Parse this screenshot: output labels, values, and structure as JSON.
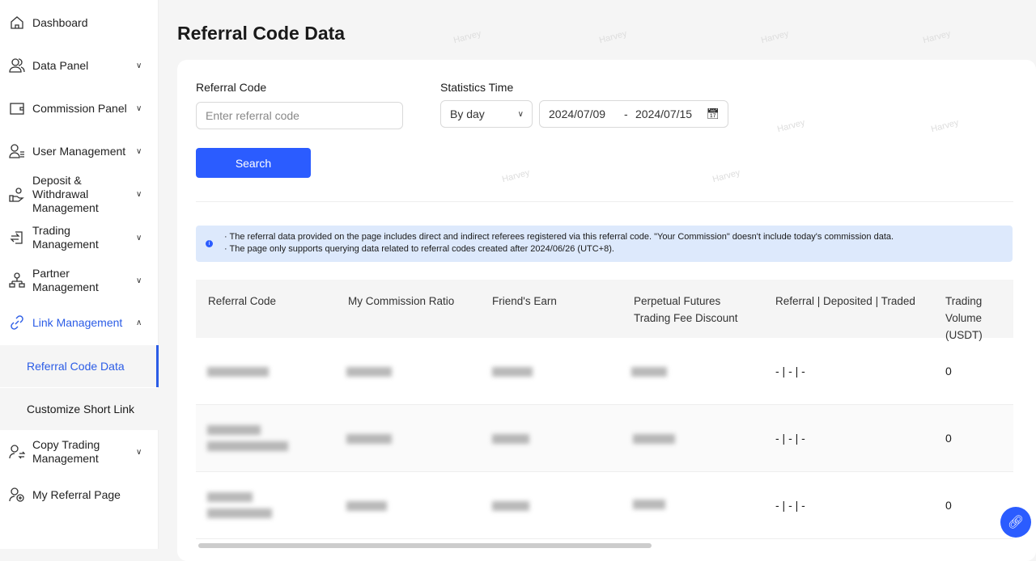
{
  "sidebar": {
    "items": [
      {
        "label": "Dashboard",
        "icon": "home-icon"
      },
      {
        "label": "Data Panel",
        "icon": "users-icon"
      },
      {
        "label": "Commission Panel",
        "icon": "wallet-icon"
      },
      {
        "label": "User Management",
        "icon": "user-list-icon"
      },
      {
        "label": "Deposit & Withdrawal Management",
        "icon": "hand-user-icon"
      },
      {
        "label": "Trading Management",
        "icon": "exchange-icon"
      },
      {
        "label": "Partner Management",
        "icon": "org-icon"
      },
      {
        "label": "Link Management",
        "icon": "link-icon"
      },
      {
        "label": "Copy Trading Management",
        "icon": "copy-user-icon"
      },
      {
        "label": "My Referral Page",
        "icon": "user-plus-icon"
      }
    ],
    "sub_items": [
      {
        "label": "Referral Code Data"
      },
      {
        "label": "Customize Short Link"
      }
    ]
  },
  "page": {
    "title": "Referral Code Data"
  },
  "filters": {
    "referral_label": "Referral Code",
    "referral_placeholder": "Enter referral code",
    "stats_label": "Statistics Time",
    "period": "By day",
    "date_from": "2024/07/09",
    "date_sep": "-",
    "date_to": "2024/07/15",
    "search": "Search"
  },
  "notice": [
    "· The referral data provided on the page includes direct and indirect referees registered via this referral code. \"Your Commission\" doesn't include today's commission data.",
    "· The page only supports querying data related to referral codes created after 2024/06/26 (UTC+8)."
  ],
  "table": {
    "headers": [
      "Referral Code",
      "My Commission Ratio",
      "Friend's Earn",
      "Perpetual Futures Trading Fee Discount",
      "Referral | Deposited | Traded",
      "Trading Volume (USDT)"
    ],
    "rows": [
      {
        "rdt": "- | - | -",
        "volume": "0"
      },
      {
        "rdt": "- | - | -",
        "volume": "0"
      },
      {
        "rdt": "- | - | -",
        "volume": "0"
      }
    ]
  },
  "watermark": "Harvey",
  "accent": "#2b5cff"
}
